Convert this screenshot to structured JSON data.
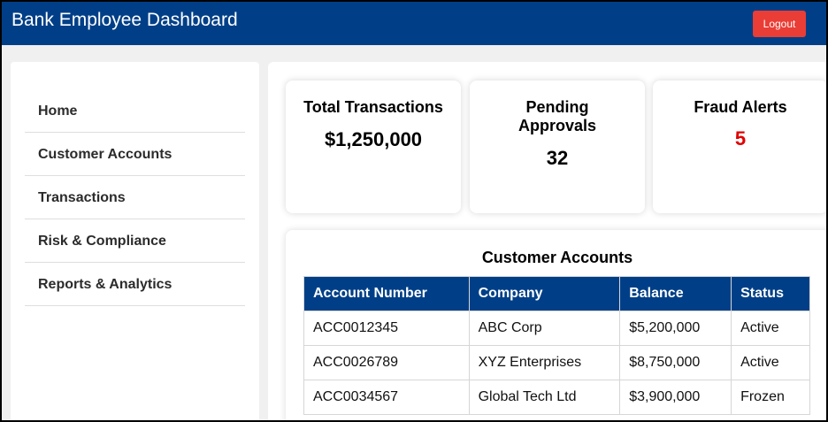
{
  "header": {
    "title": "Bank Employee Dashboard",
    "logout_label": "Logout"
  },
  "sidebar": {
    "items": [
      {
        "label": "Home"
      },
      {
        "label": "Customer Accounts"
      },
      {
        "label": "Transactions"
      },
      {
        "label": "Risk & Compliance"
      },
      {
        "label": "Reports & Analytics"
      }
    ]
  },
  "cards": [
    {
      "label": "Total Transactions",
      "value": "$1,250,000"
    },
    {
      "label": "Pending Approvals",
      "value": "32"
    },
    {
      "label": "Fraud Alerts",
      "value": "5"
    }
  ],
  "accounts_table": {
    "title": "Customer Accounts",
    "columns": [
      "Account Number",
      "Company",
      "Balance",
      "Status"
    ],
    "rows": [
      [
        "ACC0012345",
        "ABC Corp",
        "$5,200,000",
        "Active"
      ],
      [
        "ACC0026789",
        "XYZ Enterprises",
        "$8,750,000",
        "Active"
      ],
      [
        "ACC0034567",
        "Global Tech Ltd",
        "$3,900,000",
        "Frozen"
      ]
    ]
  },
  "colors": {
    "header_bg": "#003f87",
    "logout_bg": "#ea3d35",
    "alert_value": "#e00000",
    "table_header_bg": "#003f87"
  }
}
